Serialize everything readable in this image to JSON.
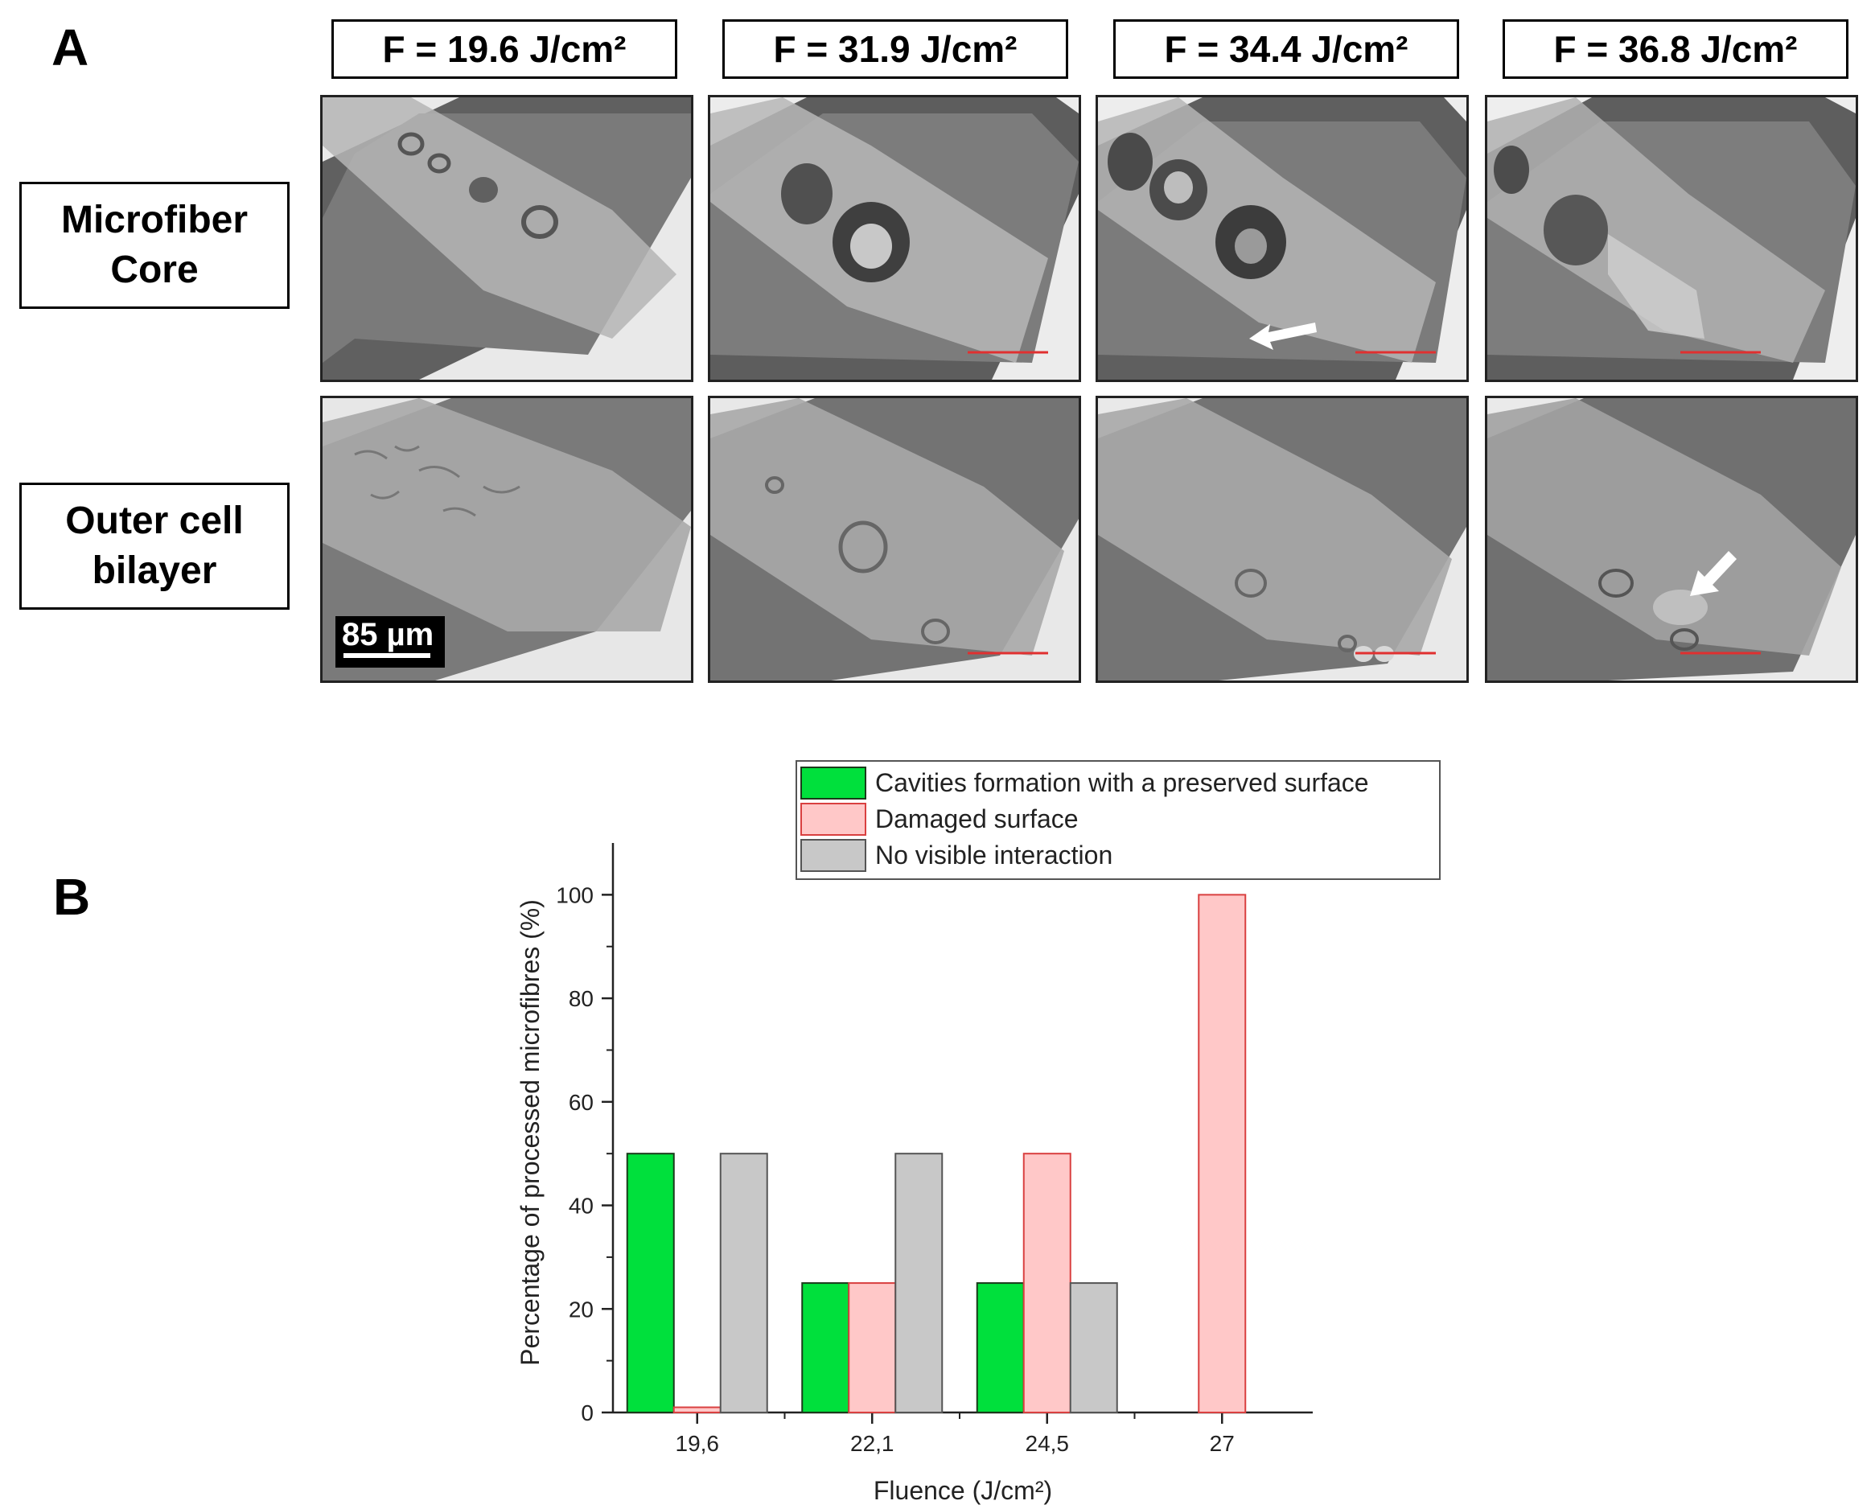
{
  "panel_a": {
    "letter": "A",
    "columns": [
      "F = 19.6 J/cm²",
      "F = 31.9 J/cm²",
      "F = 34.4 J/cm²",
      "F = 36.8 J/cm²"
    ],
    "rows": [
      {
        "line1": "Microfiber",
        "line2": "Core"
      },
      {
        "line1": "Outer cell",
        "line2": "bilayer"
      }
    ],
    "scale_bar": "85 µm",
    "arrow_color": "#ffffff",
    "scale_line_color": "#e03030"
  },
  "panel_b": {
    "letter": "B"
  },
  "chart_data": {
    "type": "bar",
    "categories": [
      "19,6",
      "22,1",
      "24,5",
      "27"
    ],
    "series": [
      {
        "name": "Cavities formation with a preserved surface",
        "values": [
          50,
          25,
          25,
          0
        ],
        "color": "#00e03c",
        "edge": "#1a3a1a"
      },
      {
        "name": "Damaged surface",
        "values": [
          1,
          25,
          50,
          100
        ],
        "color": "#ffc8c8",
        "edge": "#d94040"
      },
      {
        "name": "No visible interaction",
        "values": [
          50,
          50,
          25,
          0
        ],
        "color": "#c8c8c8",
        "edge": "#555555"
      }
    ],
    "xlabel": "Fluence (J/cm²)",
    "ylabel": "Percentage of processed microfibres (%)",
    "ylim": [
      0,
      110
    ],
    "yticks": [
      0,
      20,
      40,
      60,
      80,
      100
    ],
    "grid": false,
    "legend": "top"
  }
}
